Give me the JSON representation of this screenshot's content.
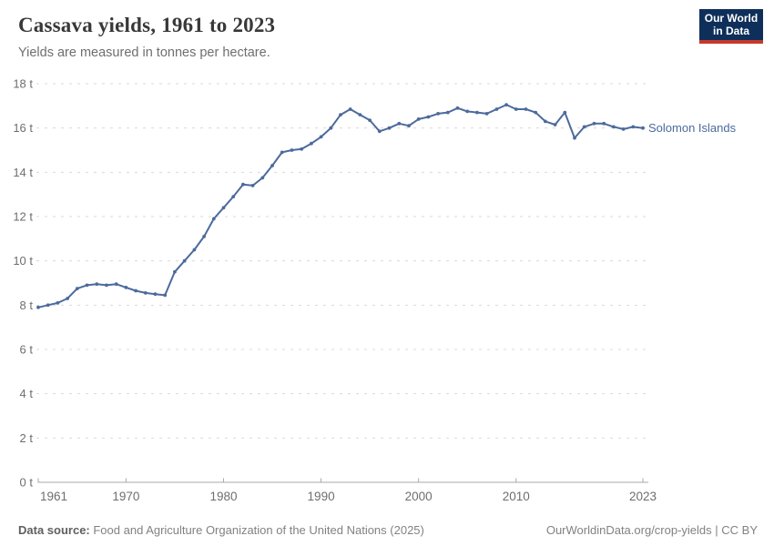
{
  "header": {
    "title": "Cassava yields, 1961 to 2023",
    "subtitle": "Yields are measured in tonnes per hectare."
  },
  "logo": {
    "line1": "Our World",
    "line2": "in Data"
  },
  "chart_data": {
    "type": "line",
    "title": "Cassava yields, 1961 to 2023",
    "ylabel": "tonnes per hectare",
    "xlabel": "",
    "xlim": [
      1961,
      2023
    ],
    "ylim": [
      0,
      18
    ],
    "grid": "horizontal-dashed",
    "legend_position": "end-of-line-label",
    "x_ticks": [
      1961,
      1970,
      1980,
      1990,
      2000,
      2010,
      2023
    ],
    "x_tick_labels": [
      "1961",
      "1970",
      "1980",
      "1990",
      "2000",
      "2010",
      "2023"
    ],
    "y_ticks": [
      0,
      2,
      4,
      6,
      8,
      10,
      12,
      14,
      16,
      18
    ],
    "y_tick_labels": [
      "0 t",
      "2 t",
      "4 t",
      "6 t",
      "8 t",
      "10 t",
      "12 t",
      "14 t",
      "16 t",
      "18 t"
    ],
    "series": [
      {
        "name": "Solomon Islands",
        "color": "#4C6A9C",
        "x": [
          1961,
          1962,
          1963,
          1964,
          1965,
          1966,
          1967,
          1968,
          1969,
          1970,
          1971,
          1972,
          1973,
          1974,
          1975,
          1976,
          1977,
          1978,
          1979,
          1980,
          1981,
          1982,
          1983,
          1984,
          1985,
          1986,
          1987,
          1988,
          1989,
          1990,
          1991,
          1992,
          1993,
          1994,
          1995,
          1996,
          1997,
          1998,
          1999,
          2000,
          2001,
          2002,
          2003,
          2004,
          2005,
          2006,
          2007,
          2008,
          2009,
          2010,
          2011,
          2012,
          2013,
          2014,
          2015,
          2016,
          2017,
          2018,
          2019,
          2020,
          2021,
          2022,
          2023
        ],
        "values": [
          7.9,
          8.0,
          8.1,
          8.3,
          8.75,
          8.9,
          8.95,
          8.9,
          8.95,
          8.8,
          8.65,
          8.55,
          8.5,
          8.45,
          9.5,
          10.0,
          10.5,
          11.1,
          11.9,
          12.4,
          12.9,
          13.45,
          13.4,
          13.75,
          14.3,
          14.9,
          15.0,
          15.05,
          15.3,
          15.6,
          16.0,
          16.6,
          16.85,
          16.6,
          16.35,
          15.85,
          16.0,
          16.2,
          16.1,
          16.4,
          16.5,
          16.65,
          16.7,
          16.9,
          16.75,
          16.7,
          16.65,
          16.85,
          17.05,
          16.85,
          16.85,
          16.7,
          16.3,
          16.15,
          16.7,
          15.55,
          16.05,
          16.2,
          16.2,
          16.05,
          15.95,
          16.05,
          16.0
        ]
      }
    ]
  },
  "footer": {
    "source_label": "Data source:",
    "source_text": " Food and Agriculture Organization of the United Nations (2025)",
    "attribution": "OurWorldinData.org/crop-yields | CC BY"
  },
  "colors": {
    "accent_blue": "#4C6A9C",
    "logo_navy": "#0e2f5a",
    "logo_red": "#c5392d",
    "grid_line": "#dadada",
    "axis_line": "#a8a8a8",
    "tick_text": "#6e6e6e"
  }
}
